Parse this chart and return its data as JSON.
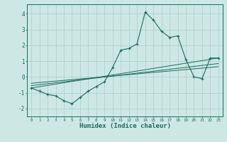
{
  "xlabel": "Humidex (Indice chaleur)",
  "bg_color": "#cde8e4",
  "grid_color": "#aaccc8",
  "line_color": "#1a6b5a",
  "xlim": [
    -0.5,
    23.5
  ],
  "ylim": [
    -2.5,
    4.6
  ],
  "xticks": [
    0,
    1,
    2,
    3,
    4,
    5,
    6,
    7,
    8,
    9,
    10,
    11,
    12,
    13,
    14,
    15,
    16,
    17,
    18,
    19,
    20,
    21,
    22,
    23
  ],
  "yticks": [
    -2,
    -1,
    0,
    1,
    2,
    3,
    4
  ],
  "line1_x": [
    0,
    1,
    2,
    3,
    4,
    5,
    6,
    7,
    8,
    9,
    10,
    11,
    12,
    13,
    14,
    15,
    16,
    17,
    18,
    19,
    20,
    21,
    22,
    23
  ],
  "line1_y": [
    -0.7,
    -0.9,
    -1.1,
    -1.2,
    -1.5,
    -1.7,
    -1.3,
    -0.9,
    -0.6,
    -0.3,
    0.6,
    1.7,
    1.8,
    2.1,
    4.1,
    3.6,
    2.9,
    2.5,
    2.6,
    1.1,
    0.0,
    -0.1,
    1.2,
    1.2
  ],
  "line2_x": [
    0,
    23
  ],
  "line2_y": [
    -0.7,
    1.2
  ],
  "line3_x": [
    0,
    23
  ],
  "line3_y": [
    -0.55,
    0.85
  ],
  "line4_x": [
    0,
    23
  ],
  "line4_y": [
    -0.4,
    0.65
  ]
}
